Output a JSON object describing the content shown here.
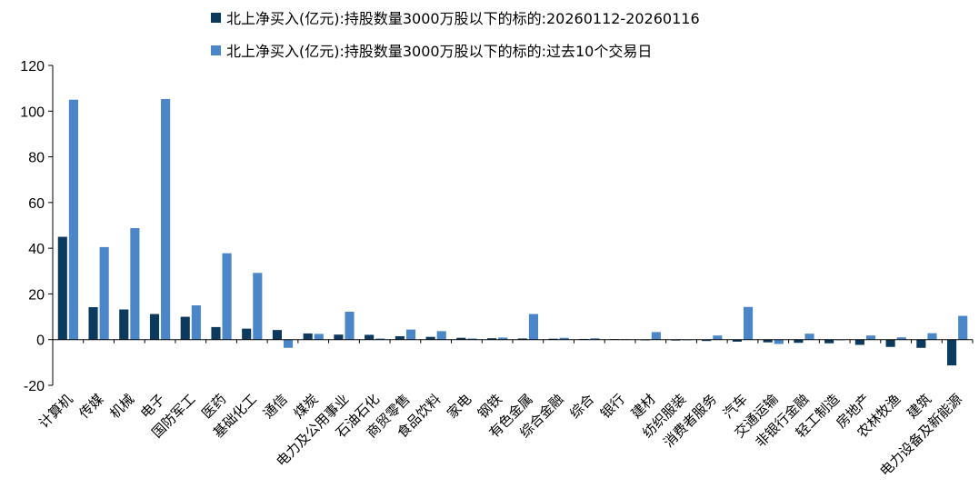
{
  "chart_data": {
    "type": "bar",
    "categories": [
      "计算机",
      "传媒",
      "机械",
      "电子",
      "国防军工",
      "医药",
      "基础化工",
      "通信",
      "煤炭",
      "电力及公用事业",
      "石油石化",
      "商贸零售",
      "食品饮料",
      "家电",
      "钢铁",
      "有色金属",
      "综合金融",
      "综合",
      "银行",
      "建材",
      "纺织服装",
      "消费者服务",
      "汽车",
      "交通运输",
      "非银行金融",
      "轻工制造",
      "房地产",
      "农林牧渔",
      "建筑",
      "电力设备及新能源"
    ],
    "series": [
      {
        "name": "北上净买入(亿元):持股数量3000万股以下的标的:20260112-20260116",
        "color": "#0b3a5e",
        "values": [
          45,
          14.2,
          13.2,
          11.2,
          10,
          5.5,
          4.8,
          4.2,
          2.7,
          2.2,
          2.1,
          1.5,
          1.2,
          0.8,
          0.6,
          0.5,
          0.4,
          0.3,
          0.2,
          -0.2,
          -0.4,
          -0.6,
          -0.9,
          -1.2,
          -1.4,
          -1.6,
          -2.3,
          -3.2,
          -3.6,
          -11.3
        ]
      },
      {
        "name": "北上净买入(亿元):持股数量3000万股以下的标的:过去10个交易日",
        "color": "#4a86c8",
        "values": [
          105,
          40.5,
          48.8,
          105.3,
          15,
          37.8,
          29.2,
          -3.6,
          2.5,
          12.2,
          0.5,
          4.4,
          3.7,
          0.5,
          0.9,
          11.2,
          0.8,
          0.6,
          0.2,
          3.3,
          -0.3,
          1.8,
          14.3,
          -1.9,
          2.6,
          -0.3,
          1.8,
          1,
          2.8,
          10.4
        ]
      }
    ],
    "ylim": [
      -20,
      120
    ],
    "yticks": [
      -20,
      0,
      20,
      40,
      60,
      80,
      100,
      120
    ],
    "legend_position": "top"
  }
}
